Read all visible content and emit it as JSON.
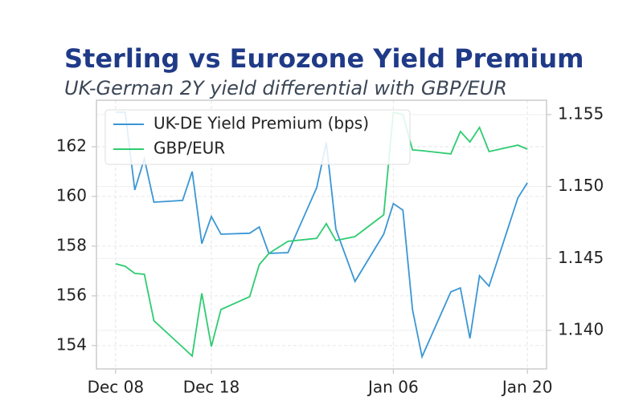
{
  "chart_data": {
    "type": "line",
    "title": "Sterling vs Eurozone Yield Premium",
    "subtitle": "UK-German 2Y yield differential with GBP/EUR",
    "x": [
      "12-08",
      "12-09",
      "12-10",
      "12-11",
      "12-12",
      "12-15",
      "12-16",
      "12-17",
      "12-18",
      "12-19",
      "12-22",
      "12-23",
      "12-24",
      "12-26",
      "12-29",
      "12-30",
      "12-31",
      "01-02",
      "01-05",
      "01-06",
      "01-07",
      "01-08",
      "01-09",
      "01-12",
      "01-13",
      "01-14",
      "01-15",
      "01-16",
      "01-19",
      "01-20"
    ],
    "xlim": [
      "12-06",
      "01-22"
    ],
    "xticks": [
      {
        "value": "12-08",
        "label": "Dec 08"
      },
      {
        "value": "12-18",
        "label": "Dec 18"
      },
      {
        "value": "01-06",
        "label": "Jan 06"
      },
      {
        "value": "01-20",
        "label": "Jan 20"
      }
    ],
    "series": [
      {
        "name": "UK-DE Yield Premium (bps)",
        "color": "#3a96d4",
        "axis": "y",
        "values": [
          163.39,
          163.39,
          160.26,
          161.52,
          159.77,
          159.84,
          161.0,
          158.1,
          159.19,
          158.48,
          158.52,
          158.77,
          157.71,
          157.74,
          160.35,
          162.16,
          158.68,
          156.58,
          158.48,
          159.71,
          159.45,
          155.45,
          153.55,
          156.16,
          156.32,
          154.29,
          156.81,
          156.39,
          159.94,
          160.55
        ]
      },
      {
        "name": "GBP/EUR",
        "color": "#2ecc71",
        "axis": "y2",
        "values": [
          1.14463,
          1.14446,
          1.14396,
          1.1439,
          1.14067,
          1.13883,
          1.13822,
          1.14257,
          1.13888,
          1.14145,
          1.14234,
          1.14457,
          1.14535,
          1.14619,
          1.1464,
          1.14742,
          1.14625,
          1.14652,
          1.14803,
          1.15517,
          1.155,
          1.15255,
          1.15249,
          1.15227,
          1.15383,
          1.1531,
          1.15411,
          1.15243,
          1.15288,
          1.1526
        ]
      }
    ],
    "ylim": [
      153.06,
      163.87
    ],
    "yticks": [
      154,
      156,
      158,
      160,
      162
    ],
    "y2lim": [
      1.13732,
      1.156
    ],
    "y2ticks": [
      {
        "value": 1.14,
        "label": "1.140"
      },
      {
        "value": 1.145,
        "label": "1.145"
      },
      {
        "value": 1.15,
        "label": "1.150"
      },
      1.155
    ],
    "grid": true,
    "legend": "upper left"
  }
}
